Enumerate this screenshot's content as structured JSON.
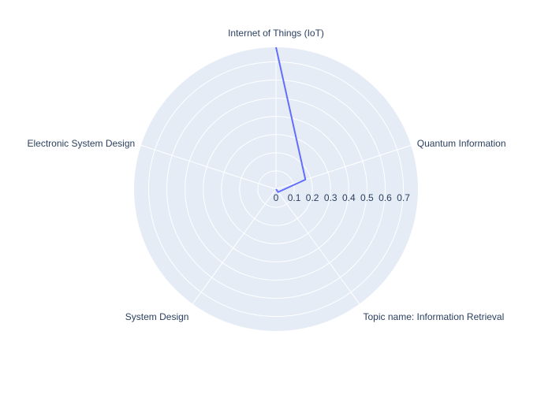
{
  "chart_data": {
    "type": "radar",
    "categories": [
      "Internet of Things (IoT)",
      "Quantum Information",
      "Topic name: Information Retrieval",
      "System Design",
      "Electronic System Design"
    ],
    "series": [
      {
        "values": [
          0.78,
          0.17,
          0.02,
          0.0,
          0.0
        ],
        "color": "#636efa",
        "closed": false
      }
    ],
    "radial_ticks": [
      "0",
      "0.1",
      "0.2",
      "0.3",
      "0.4",
      "0.5",
      "0.6",
      "0.7"
    ],
    "radial_range": [
      0,
      0.78
    ],
    "grid": true,
    "legend": "none",
    "colors": {
      "polar_bg": "#e5ecf6",
      "grid": "#ffffff",
      "text": "#2a3f5f"
    }
  }
}
